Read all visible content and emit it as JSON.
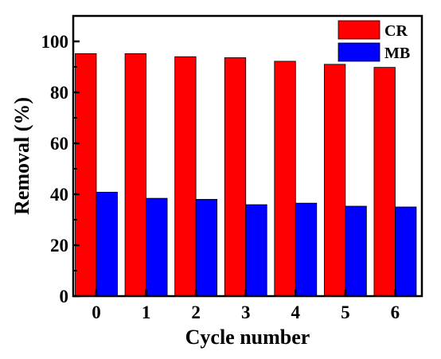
{
  "chart_data": {
    "type": "bar",
    "categories": [
      "0",
      "1",
      "2",
      "3",
      "4",
      "5",
      "6"
    ],
    "series": [
      {
        "name": "CR",
        "color": "#ff0000",
        "values": [
          95.2,
          95.2,
          94.0,
          93.6,
          92.2,
          91.0,
          89.8
        ]
      },
      {
        "name": "MB",
        "color": "#0000ff",
        "values": [
          40.8,
          38.4,
          38.0,
          35.9,
          36.5,
          35.3,
          35.0
        ]
      }
    ],
    "xlabel": "Cycle number",
    "ylabel": "Removal (%)",
    "ylim": [
      0,
      110
    ],
    "yticks": [
      "0",
      "20",
      "40",
      "60",
      "80",
      "100"
    ],
    "grid": false,
    "legend_position": "top-right"
  }
}
